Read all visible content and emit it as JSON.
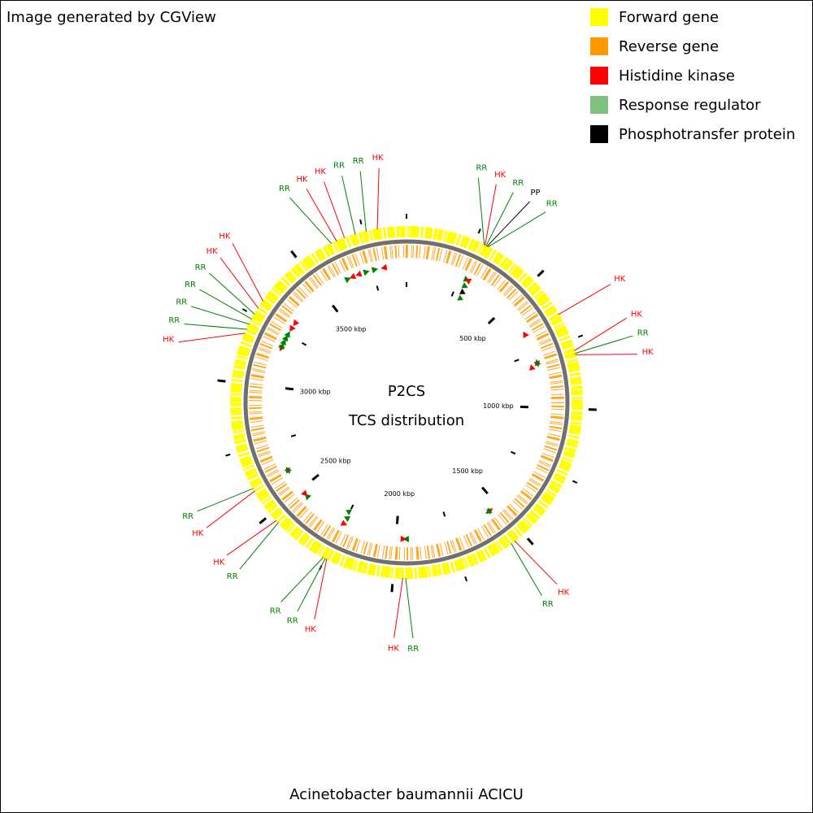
{
  "header": {
    "title": "Image generated by CGView"
  },
  "legend": [
    {
      "label": "Forward gene",
      "color": "#ffff00"
    },
    {
      "label": "Reverse gene",
      "color": "#ff9900"
    },
    {
      "label": "Histidine kinase",
      "color": "#ff0000"
    },
    {
      "label": "Response regulator",
      "color": "#80c080"
    },
    {
      "label": "Phosphotransfer protein",
      "color": "#000000"
    }
  ],
  "map": {
    "center_title": "P2CS",
    "center_subtitle": "TCS distribution",
    "genome_length": 3904,
    "ticks": [
      {
        "value": 500,
        "label": "500 kbp"
      },
      {
        "value": 1000,
        "label": "1000 kbp"
      },
      {
        "value": 1500,
        "label": "1500 kbp"
      },
      {
        "value": 2000,
        "label": "2000 kbp"
      },
      {
        "value": 2500,
        "label": "2500 kbp"
      },
      {
        "value": 3000,
        "label": "3000 kbp"
      },
      {
        "value": 3500,
        "label": "3500 kbp"
      }
    ],
    "minor_ticks": [
      0,
      250,
      750,
      1250,
      1750,
      2250,
      2750,
      3250,
      3750
    ],
    "feature_colors": {
      "HK": "#ff0000",
      "RR": "#008000",
      "PP": "#000000"
    },
    "features": [
      {
        "label": "RR",
        "position": 285
      },
      {
        "label": "HK",
        "position": 288
      },
      {
        "label": "RR",
        "position": 292
      },
      {
        "label": "PP",
        "position": 296
      },
      {
        "label": "RR",
        "position": 300
      },
      {
        "label": "HK",
        "position": 650
      },
      {
        "label": "HK",
        "position": 790
      },
      {
        "label": "RR",
        "position": 800
      },
      {
        "label": "HK",
        "position": 805
      },
      {
        "label": "HK",
        "position": 1540
      },
      {
        "label": "RR",
        "position": 1555
      },
      {
        "label": "RR",
        "position": 1955
      },
      {
        "label": "HK",
        "position": 1965
      },
      {
        "label": "HK",
        "position": 2245
      },
      {
        "label": "RR",
        "position": 2250
      },
      {
        "label": "RR",
        "position": 2258
      },
      {
        "label": "RR",
        "position": 2460
      },
      {
        "label": "HK",
        "position": 2470
      },
      {
        "label": "HK",
        "position": 2600
      },
      {
        "label": "RR",
        "position": 2610
      },
      {
        "label": "HK",
        "position": 3180
      },
      {
        "label": "RR",
        "position": 3195
      },
      {
        "label": "RR",
        "position": 3215
      },
      {
        "label": "RR",
        "position": 3235
      },
      {
        "label": "RR",
        "position": 3255
      },
      {
        "label": "HK",
        "position": 3280
      },
      {
        "label": "HK",
        "position": 3310
      },
      {
        "label": "RR",
        "position": 3630
      },
      {
        "label": "HK",
        "position": 3650
      },
      {
        "label": "HK",
        "position": 3680
      },
      {
        "label": "RR",
        "position": 3720
      },
      {
        "label": "RR",
        "position": 3760
      },
      {
        "label": "HK",
        "position": 3800
      }
    ]
  },
  "footer": {
    "caption": "Acinetobacter baumannii ACICU"
  }
}
